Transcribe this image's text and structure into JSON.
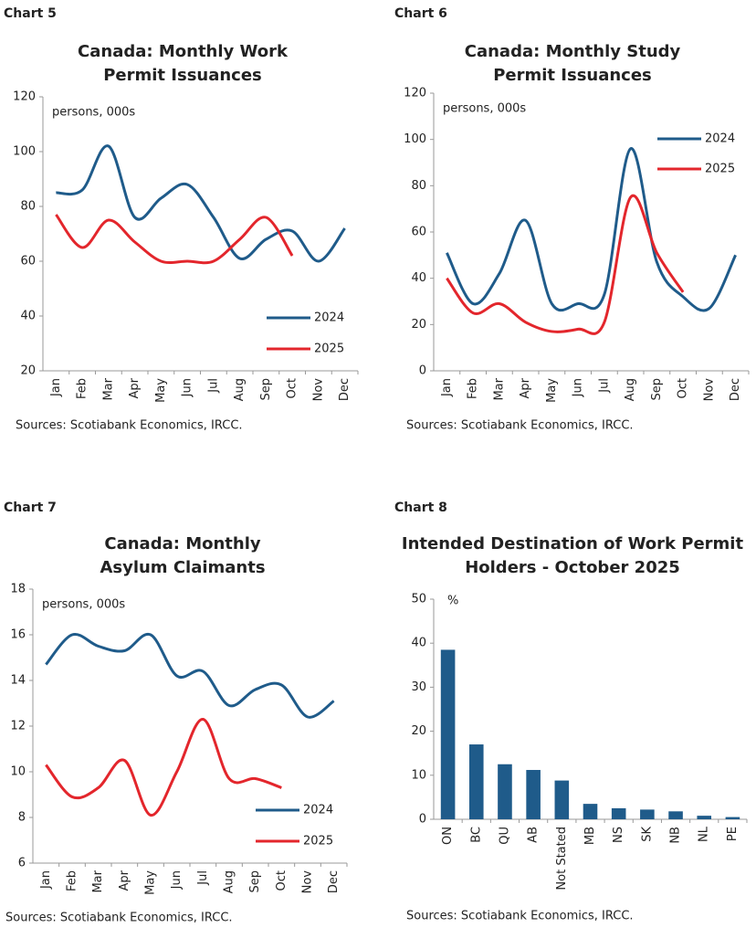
{
  "chart_data": [
    {
      "type": "line",
      "label": "Chart 5",
      "title": [
        "Canada: Monthly Work",
        "Permit Issuances"
      ],
      "unit": "persons, 000s",
      "source": "Sources: Scotiabank Economics, IRCC.",
      "categories": [
        "Jan",
        "Feb",
        "Mar",
        "Apr",
        "May",
        "Jun",
        "Jul",
        "Aug",
        "Sep",
        "Oct",
        "Nov",
        "Dec"
      ],
      "series": [
        {
          "name": "2024",
          "color": "#1f5b8a",
          "values": [
            85,
            86,
            102,
            76,
            83,
            88,
            76,
            61,
            68,
            71,
            60,
            72
          ]
        },
        {
          "name": "2025",
          "color": "#e3262c",
          "values": [
            77,
            65,
            75,
            67,
            60,
            60,
            60,
            68,
            76,
            62,
            null,
            null
          ]
        }
      ],
      "ylim": [
        20,
        120
      ],
      "yticks": [
        20,
        40,
        60,
        80,
        100,
        120
      ],
      "legend": "lower right"
    },
    {
      "type": "line",
      "label": "Chart 6",
      "title": [
        "Canada: Monthly Study",
        "Permit Issuances"
      ],
      "unit": "persons, 000s",
      "source": "Sources: Scotiabank Economics, IRCC.",
      "categories": [
        "Jan",
        "Feb",
        "Mar",
        "Apr",
        "May",
        "Jun",
        "Jul",
        "Aug",
        "Sep",
        "Oct",
        "Nov",
        "Dec"
      ],
      "series": [
        {
          "name": "2024",
          "color": "#1f5b8a",
          "values": [
            51,
            29,
            42,
            65,
            29,
            29,
            33,
            96,
            47,
            32,
            27,
            50
          ]
        },
        {
          "name": "2025",
          "color": "#e3262c",
          "values": [
            40,
            25,
            29,
            21,
            17,
            18,
            21,
            75,
            51,
            34,
            null,
            null
          ]
        }
      ],
      "ylim": [
        0,
        120
      ],
      "yticks": [
        0,
        20,
        40,
        60,
        80,
        100,
        120
      ],
      "legend": "upper right"
    },
    {
      "type": "line",
      "label": "Chart 7",
      "title": [
        "Canada: Monthly",
        "Asylum Claimants"
      ],
      "unit": "persons, 000s",
      "source": "Sources: Scotiabank Economics, IRCC.",
      "categories": [
        "Jan",
        "Feb",
        "Mar",
        "Apr",
        "May",
        "Jun",
        "Jul",
        "Aug",
        "Sep",
        "Oct",
        "Nov",
        "Dec"
      ],
      "series": [
        {
          "name": "2024",
          "color": "#1f5b8a",
          "values": [
            14.7,
            16.0,
            15.5,
            15.3,
            16.0,
            14.2,
            14.4,
            12.9,
            13.6,
            13.8,
            12.4,
            13.1
          ]
        },
        {
          "name": "2025",
          "color": "#e3262c",
          "values": [
            10.3,
            8.9,
            9.3,
            10.5,
            8.1,
            10.0,
            12.3,
            9.7,
            9.7,
            9.3,
            null,
            null
          ]
        }
      ],
      "ylim": [
        6,
        18
      ],
      "yticks": [
        6,
        8,
        10,
        12,
        14,
        16,
        18
      ],
      "legend": "lower right"
    },
    {
      "type": "bar",
      "label": "Chart 8",
      "title": [
        "Intended Destination of Work Permit",
        "Holders - October 2025"
      ],
      "unit": "%",
      "source": "Sources: Scotiabank Economics, IRCC.",
      "categories": [
        "ON",
        "BC",
        "QU",
        "AB",
        "Not Stated",
        "MB",
        "NS",
        "SK",
        "NB",
        "NL",
        "PE"
      ],
      "values": [
        38.5,
        17,
        12.5,
        11.2,
        8.8,
        3.5,
        2.5,
        2.2,
        1.8,
        0.8,
        0.5
      ],
      "color": "#1f5b8a",
      "ylim": [
        0,
        50
      ],
      "yticks": [
        0,
        10,
        20,
        30,
        40,
        50
      ]
    }
  ]
}
